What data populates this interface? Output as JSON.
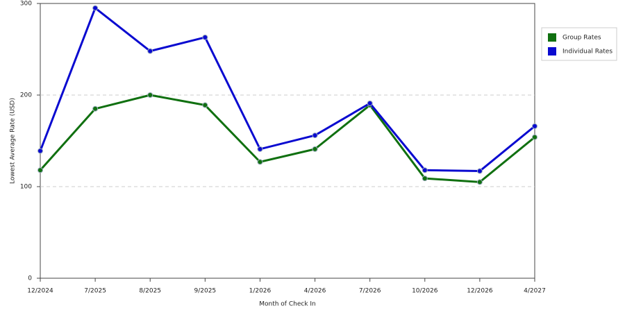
{
  "chart_data": {
    "type": "line",
    "x_label": "Month of Check In",
    "y_label": "Lowest Average Rate (USD)",
    "categories": [
      "12/2024",
      "7/2025",
      "8/2025",
      "9/2025",
      "1/2026",
      "4/2026",
      "7/2026",
      "10/2026",
      "12/2026",
      "4/2027"
    ],
    "series": [
      {
        "name": "Group Rates",
        "color": "#107010",
        "values": [
          118,
          185,
          200,
          189,
          127,
          141,
          189,
          109,
          105,
          154
        ]
      },
      {
        "name": "Individual Rates",
        "color": "#0a0ad0",
        "values": [
          139,
          295,
          248,
          263,
          141,
          156,
          191,
          118,
          117,
          166
        ]
      }
    ],
    "ylim": [
      0,
      300
    ],
    "yticks": [
      0,
      100,
      200,
      300
    ],
    "grid": true,
    "legend": "right"
  }
}
